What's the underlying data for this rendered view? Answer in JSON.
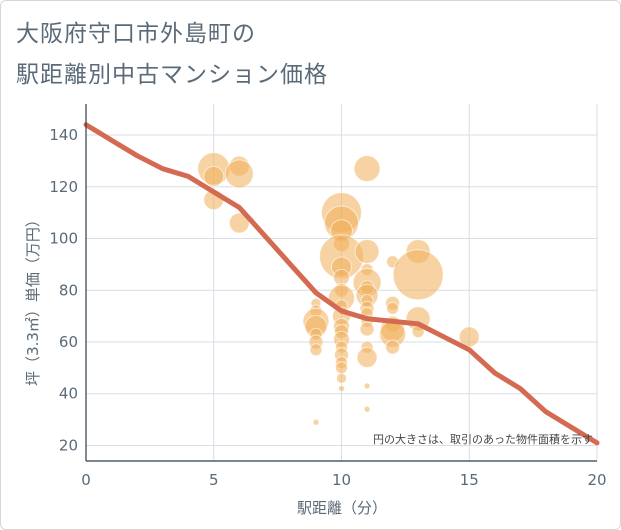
{
  "title_lines": [
    "大阪府守口市外島町の",
    "駅距離別中古マンション価格"
  ],
  "chart_data": {
    "type": "scatter",
    "xlabel": "駅距離（分）",
    "ylabel": "坪（3.3㎡）単価（万円）",
    "annotation": "円の大きさは、取引のあった物件面積を示す",
    "xlim": [
      0,
      20
    ],
    "ylim": [
      14,
      152
    ],
    "xticks": [
      0,
      5,
      10,
      15,
      20
    ],
    "yticks": [
      20,
      40,
      60,
      80,
      100,
      120,
      140
    ],
    "grid": true,
    "colors": {
      "bubble": "#f0ae59",
      "line": "#d46a52",
      "grid": "#d7dee6",
      "text": "#5a6a78"
    },
    "series": [
      {
        "type": "line",
        "x": [
          0,
          1,
          2,
          3,
          4,
          5,
          6,
          7,
          8,
          9,
          10,
          11,
          12,
          13,
          14,
          15,
          16,
          17,
          18,
          19,
          20
        ],
        "values": [
          144,
          138,
          132,
          127,
          124,
          118,
          112,
          101,
          90,
          79,
          72,
          69,
          68,
          67,
          62,
          57,
          48,
          42,
          33,
          27,
          21
        ]
      },
      {
        "type": "bubble",
        "points": [
          {
            "x": 5,
            "y": 127,
            "s": 16
          },
          {
            "x": 5,
            "y": 124,
            "s": 10
          },
          {
            "x": 5,
            "y": 115,
            "s": 10
          },
          {
            "x": 6,
            "y": 128,
            "s": 10
          },
          {
            "x": 6,
            "y": 125,
            "s": 14
          },
          {
            "x": 6,
            "y": 106,
            "s": 10
          },
          {
            "x": 10,
            "y": 110,
            "s": 20
          },
          {
            "x": 10,
            "y": 106,
            "s": 17
          },
          {
            "x": 10,
            "y": 103,
            "s": 11
          },
          {
            "x": 10,
            "y": 98,
            "s": 8
          },
          {
            "x": 10,
            "y": 93,
            "s": 22
          },
          {
            "x": 10,
            "y": 89,
            "s": 10
          },
          {
            "x": 10,
            "y": 85,
            "s": 8
          },
          {
            "x": 10,
            "y": 80,
            "s": 7
          },
          {
            "x": 10,
            "y": 77,
            "s": 13
          },
          {
            "x": 10,
            "y": 74,
            "s": 6
          },
          {
            "x": 10,
            "y": 70,
            "s": 9
          },
          {
            "x": 10,
            "y": 66,
            "s": 8
          },
          {
            "x": 10,
            "y": 64,
            "s": 7
          },
          {
            "x": 10,
            "y": 61,
            "s": 8
          },
          {
            "x": 10,
            "y": 58,
            "s": 6
          },
          {
            "x": 10,
            "y": 55,
            "s": 7
          },
          {
            "x": 10,
            "y": 52,
            "s": 6
          },
          {
            "x": 10,
            "y": 50,
            "s": 6
          },
          {
            "x": 10,
            "y": 46,
            "s": 5
          },
          {
            "x": 10,
            "y": 42,
            "s": 3
          },
          {
            "x": 9,
            "y": 75,
            "s": 5
          },
          {
            "x": 9,
            "y": 72,
            "s": 6
          },
          {
            "x": 9,
            "y": 68,
            "s": 13
          },
          {
            "x": 9,
            "y": 66,
            "s": 11
          },
          {
            "x": 9,
            "y": 63,
            "s": 6
          },
          {
            "x": 9,
            "y": 60,
            "s": 7
          },
          {
            "x": 9,
            "y": 57,
            "s": 6
          },
          {
            "x": 9,
            "y": 29,
            "s": 3
          },
          {
            "x": 11,
            "y": 127,
            "s": 13
          },
          {
            "x": 11,
            "y": 95,
            "s": 12
          },
          {
            "x": 11,
            "y": 88,
            "s": 6
          },
          {
            "x": 11,
            "y": 83,
            "s": 14
          },
          {
            "x": 11,
            "y": 81,
            "s": 7
          },
          {
            "x": 11,
            "y": 78,
            "s": 11
          },
          {
            "x": 11,
            "y": 76,
            "s": 6
          },
          {
            "x": 11,
            "y": 73,
            "s": 7
          },
          {
            "x": 11,
            "y": 71,
            "s": 6
          },
          {
            "x": 11,
            "y": 68,
            "s": 6
          },
          {
            "x": 11,
            "y": 65,
            "s": 7
          },
          {
            "x": 11,
            "y": 58,
            "s": 6
          },
          {
            "x": 11,
            "y": 54,
            "s": 10
          },
          {
            "x": 11,
            "y": 43,
            "s": 3
          },
          {
            "x": 11,
            "y": 34,
            "s": 3
          },
          {
            "x": 12,
            "y": 91,
            "s": 6
          },
          {
            "x": 12,
            "y": 75,
            "s": 7
          },
          {
            "x": 12,
            "y": 73,
            "s": 6
          },
          {
            "x": 12,
            "y": 67,
            "s": 8
          },
          {
            "x": 12,
            "y": 65,
            "s": 12
          },
          {
            "x": 12,
            "y": 63,
            "s": 13
          },
          {
            "x": 12,
            "y": 58,
            "s": 7
          },
          {
            "x": 13,
            "y": 95,
            "s": 12
          },
          {
            "x": 13,
            "y": 86,
            "s": 25
          },
          {
            "x": 13,
            "y": 69,
            "s": 12
          },
          {
            "x": 13,
            "y": 64,
            "s": 6
          },
          {
            "x": 15,
            "y": 62,
            "s": 10
          }
        ]
      }
    ]
  }
}
